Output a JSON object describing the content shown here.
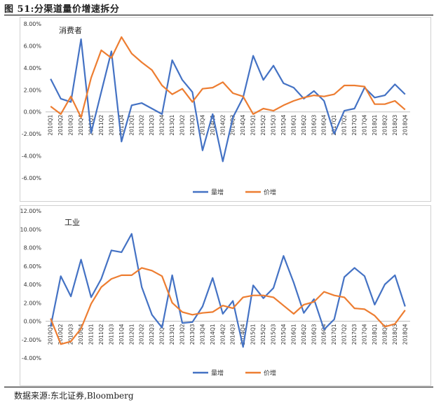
{
  "figure": {
    "title": "图 51:分渠道量价增速拆分",
    "source": "数据来源:东北证券,Bloomberg"
  },
  "chart_data": [
    {
      "type": "line",
      "title": "消费者",
      "categories": [
        "2010Q1",
        "2010Q2",
        "2010Q3",
        "2010Q4",
        "2011Q1",
        "2011Q2",
        "2011Q3",
        "2011Q4",
        "2012Q1",
        "2012Q2",
        "2012Q3",
        "2012Q4",
        "2013Q1",
        "2013Q2",
        "2013Q3",
        "2013Q4",
        "2014Q1",
        "2014Q2",
        "2014Q3",
        "2014Q4",
        "2015Q1",
        "2015Q2",
        "2015Q3",
        "2015Q4",
        "2016Q1",
        "2016Q2",
        "2016Q3",
        "2016Q4",
        "2017Q1",
        "2017Q2",
        "2017Q3",
        "2017Q4",
        "2018Q1",
        "2018Q2",
        "2018Q3",
        "2018Q4"
      ],
      "ylim": [
        -0.06,
        0.08
      ],
      "yticks": [
        "8.00%",
        "6.00%",
        "4.00%",
        "2.00%",
        "0.00%",
        "-2.00%",
        "-4.00%",
        "-6.00%"
      ],
      "legend": "bottom-center",
      "series": [
        {
          "name": "量增",
          "color": "#4472C4",
          "values": [
            0.03,
            0.012,
            0.009,
            0.066,
            -0.019,
            0.018,
            0.055,
            -0.027,
            0.006,
            0.008,
            0.003,
            -0.002,
            0.047,
            0.029,
            0.018,
            -0.035,
            -0.002,
            -0.045,
            -0.005,
            0.013,
            0.051,
            0.029,
            0.042,
            0.026,
            0.022,
            0.012,
            0.019,
            0.01,
            -0.02,
            0.001,
            0.003,
            0.022,
            0.013,
            0.015,
            0.025,
            0.016
          ]
        },
        {
          "name": "价增",
          "color": "#ED7D31",
          "values": [
            0.005,
            -0.002,
            0.014,
            -0.005,
            0.031,
            0.056,
            0.049,
            0.068,
            0.053,
            0.045,
            0.038,
            0.024,
            0.016,
            0.021,
            0.009,
            0.021,
            0.022,
            0.027,
            0.017,
            0.014,
            -0.002,
            0.003,
            0.001,
            0.006,
            0.01,
            0.013,
            0.015,
            0.014,
            0.016,
            0.024,
            0.024,
            0.023,
            0.007,
            0.007,
            0.01,
            0.002
          ]
        }
      ]
    },
    {
      "type": "line",
      "title": "工业",
      "categories": [
        "2010Q1",
        "2010Q2",
        "2010Q3",
        "2010Q4",
        "2011Q1",
        "2011Q2",
        "2011Q3",
        "2011Q4",
        "2012Q1",
        "2012Q2",
        "2012Q3",
        "2012Q4",
        "2013Q1",
        "2013Q2",
        "2013Q3",
        "2013Q4",
        "2014Q1",
        "2014Q2",
        "2014Q3",
        "2014Q4",
        "2015Q1",
        "2015Q2",
        "2015Q3",
        "2015Q4",
        "2016Q1",
        "2016Q2",
        "2016Q3",
        "2016Q4",
        "2017Q1",
        "2017Q2",
        "2017Q3",
        "2017Q4",
        "2018Q1",
        "2018Q2",
        "2018Q3",
        "2018Q4"
      ],
      "ylim": [
        -0.04,
        0.12
      ],
      "yticks": [
        "12.00%",
        "10.00%",
        "8.00%",
        "6.00%",
        "4.00%",
        "2.00%",
        "0.00%",
        "-2.00%",
        "-4.00%"
      ],
      "legend": "bottom-center",
      "series": [
        {
          "name": "量增",
          "color": "#4472C4",
          "values": [
            -0.006,
            0.049,
            0.027,
            0.067,
            0.026,
            0.046,
            0.077,
            0.075,
            0.095,
            0.037,
            0.007,
            -0.007,
            0.05,
            -0.002,
            -0.001,
            0.016,
            0.047,
            0.008,
            0.022,
            -0.028,
            0.039,
            0.025,
            0.036,
            0.071,
            0.042,
            0.009,
            0.024,
            -0.009,
            0.002,
            0.048,
            0.058,
            0.049,
            0.018,
            0.04,
            0.05,
            0.016
          ]
        },
        {
          "name": "价增",
          "color": "#ED7D31",
          "values": [
            0.003,
            -0.025,
            -0.022,
            -0.008,
            0.019,
            0.037,
            0.046,
            0.05,
            0.05,
            0.058,
            0.055,
            0.049,
            0.02,
            0.01,
            0.007,
            0.009,
            0.01,
            0.017,
            0.014,
            0.026,
            0.028,
            0.028,
            0.026,
            0.017,
            0.008,
            0.018,
            0.021,
            0.032,
            0.028,
            0.026,
            0.014,
            0.013,
            0.006,
            -0.006,
            -0.003,
            0.012
          ]
        }
      ]
    }
  ]
}
